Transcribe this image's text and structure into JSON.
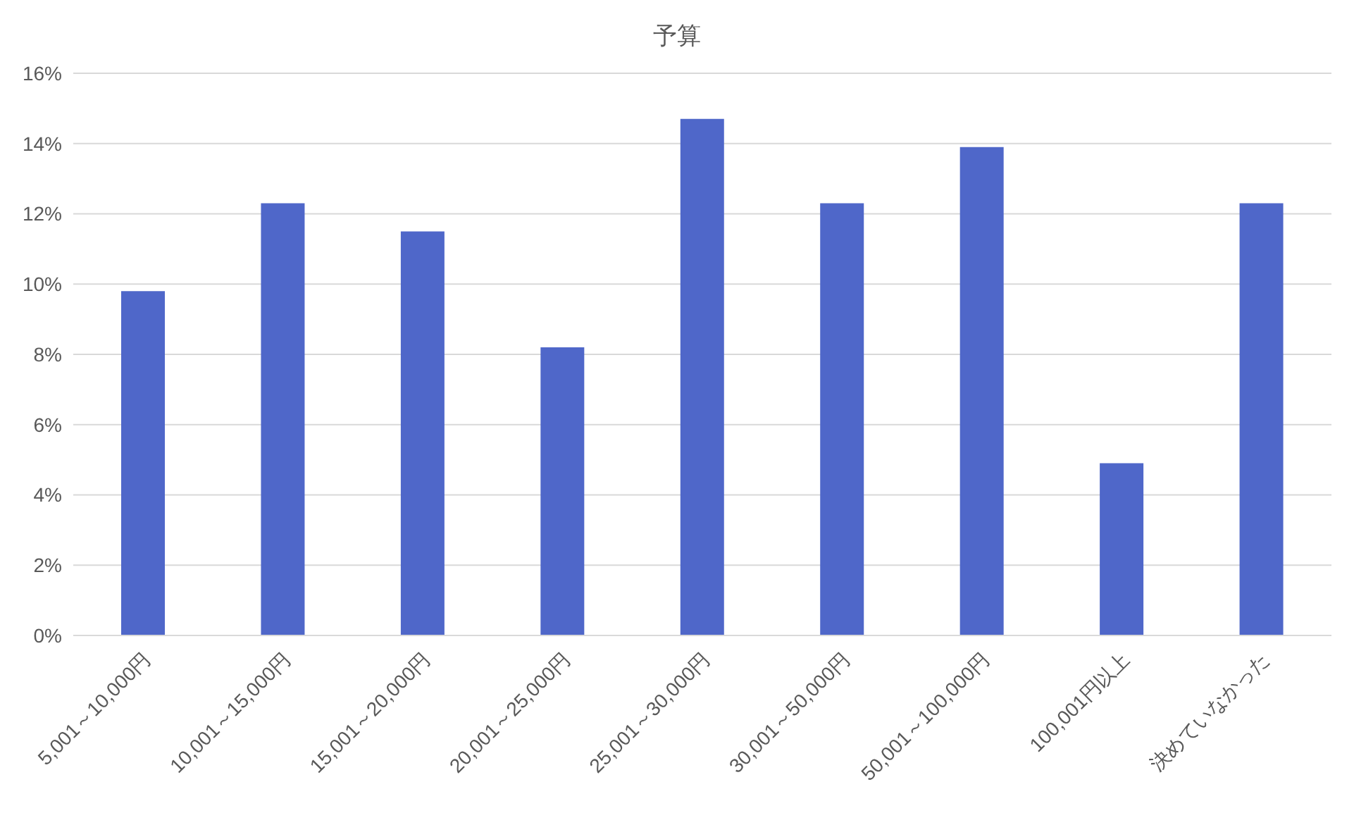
{
  "chart_data": {
    "type": "bar",
    "title": "予算",
    "categories": [
      "5,001～10,000円",
      "10,001～15,000円",
      "15,001～20,000円",
      "20,001～25,000円",
      "25,001～30,000円",
      "30,001～50,000円",
      "50,001～100,000円",
      "100,001円以上",
      "決めていなかった"
    ],
    "values": [
      9.8,
      12.3,
      11.5,
      8.2,
      14.7,
      12.3,
      13.9,
      4.9,
      12.3
    ],
    "color": "#4f67c9",
    "ylim": [
      0,
      16
    ],
    "yticks": [
      {
        "value": 0,
        "label": "0%"
      },
      {
        "value": 2,
        "label": "2%"
      },
      {
        "value": 4,
        "label": "4%"
      },
      {
        "value": 6,
        "label": "6%"
      },
      {
        "value": 8,
        "label": "8%"
      },
      {
        "value": 10,
        "label": "10%"
      },
      {
        "value": 12,
        "label": "12%"
      },
      {
        "value": 14,
        "label": "14%"
      },
      {
        "value": 16,
        "label": "16%"
      }
    ],
    "grid": "y"
  }
}
